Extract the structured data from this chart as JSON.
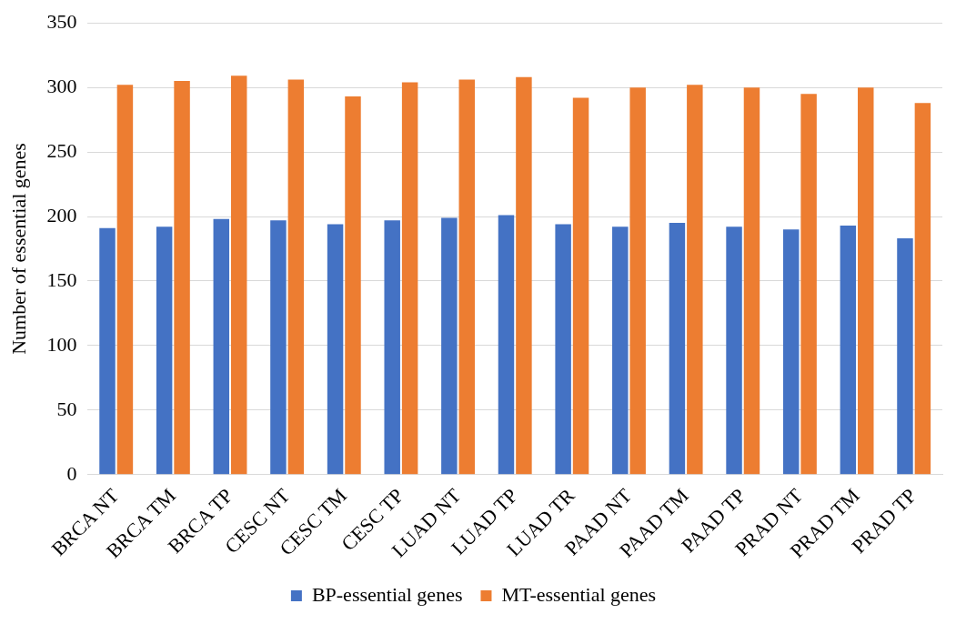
{
  "chart_data": {
    "type": "bar",
    "ylabel": "Number of essential genes",
    "categories": [
      "BRCA NT",
      "BRCA TM",
      "BRCA TP",
      "CESC NT",
      "CESC TM",
      "CESC TP",
      "LUAD NT",
      "LUAD TP",
      "LUAD TR",
      "PAAD NT",
      "PAAD TM",
      "PAAD TP",
      "PRAD NT",
      "PRAD TM",
      "PRAD TP"
    ],
    "series": [
      {
        "name": "BP-essential genes",
        "color": "#4472c4",
        "values": [
          191,
          192,
          198,
          197,
          194,
          197,
          199,
          201,
          194,
          192,
          195,
          192,
          190,
          193,
          183
        ]
      },
      {
        "name": "MT-essential genes",
        "color": "#ed7d31",
        "values": [
          302,
          305,
          309,
          306,
          293,
          304,
          306,
          308,
          292,
          300,
          302,
          300,
          295,
          300,
          288
        ]
      }
    ],
    "ylim": [
      0,
      350
    ],
    "yticks": [
      0,
      50,
      100,
      150,
      200,
      250,
      300,
      350
    ],
    "grid": "y",
    "legend": "bottom"
  }
}
